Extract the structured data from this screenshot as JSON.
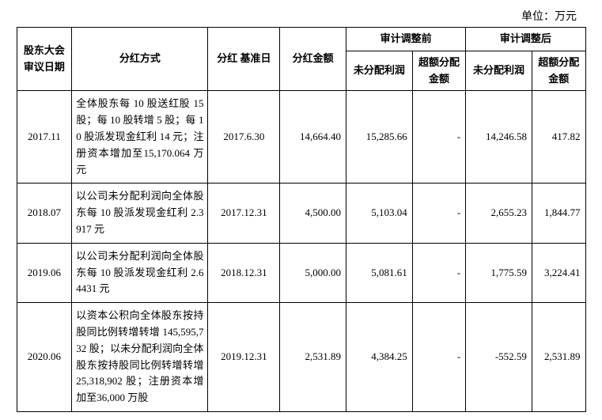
{
  "unit_label": "单位：万元",
  "headers": {
    "col_date": "股东大会审议日期",
    "col_method": "分红方式",
    "col_base": "分红\n基准日",
    "col_amount": "分红金额",
    "group_pre": "审计调整前",
    "group_post": "审计调整后",
    "sub_undist": "未分配利润",
    "sub_excess": "超额分配金额"
  },
  "rows": [
    {
      "date": "2017.11",
      "method": "全体股东每 10 股送红股 15 股；每 10 股转增 5 股；每 10 股派发现金红利 14 元；注册资本增加至15,170.064 万元",
      "base": "2017.6.30",
      "amount": "14,664.40",
      "pre_undist": "15,285.66",
      "pre_excess": "-",
      "post_undist": "14,246.58",
      "post_excess": "417.82"
    },
    {
      "date": "2018.07",
      "method": "以公司未分配利润向全体股东每 10 股派发现金红利 2.3917 元",
      "base": "2017.12.31",
      "amount": "4,500.00",
      "pre_undist": "5,103.04",
      "pre_excess": "-",
      "post_undist": "2,655.23",
      "post_excess": "1,844.77"
    },
    {
      "date": "2019.06",
      "method": "以公司未分配利润向全体股东每 10 股派发现金红利 2.64431 元",
      "base": "2018.12.31",
      "amount": "5,000.00",
      "pre_undist": "5,081.61",
      "pre_excess": "-",
      "post_undist": "1,775.59",
      "post_excess": "3,224.41"
    },
    {
      "date": "2020.06",
      "method": "以资本公积向全体股东按持股同比例转增转增 145,595,732 股；以未分配利润向全体股东按持股同比例转增转增 25,318,902 股；注册资本增加至36,000 万股",
      "base": "2019.12.31",
      "amount": "2,531.89",
      "pre_undist": "4,384.25",
      "pre_excess": "-",
      "post_undist": "-552.59",
      "post_excess": "2,531.89"
    }
  ]
}
